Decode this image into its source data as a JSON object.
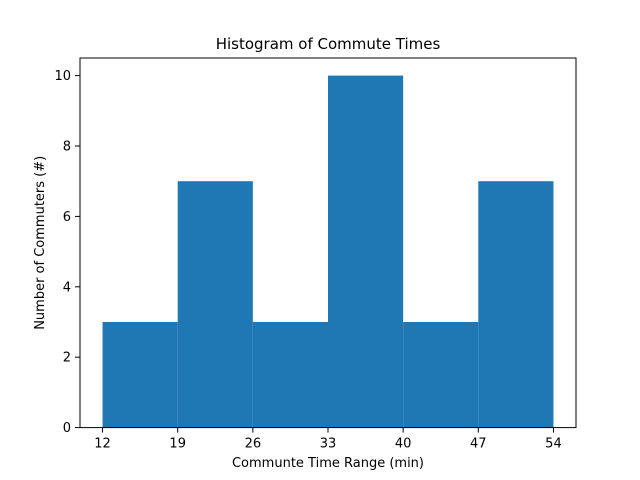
{
  "chart_data": {
    "type": "bar",
    "title": "Histogram of Commute Times",
    "xlabel": "Communte Time Range (min)",
    "ylabel": "Number of Commuters (#)",
    "bin_edges": [
      12,
      19,
      26,
      33,
      40,
      47,
      54
    ],
    "bins": [
      {
        "start": 12,
        "end": 19,
        "count": 3
      },
      {
        "start": 19,
        "end": 26,
        "count": 7
      },
      {
        "start": 26,
        "end": 33,
        "count": 3
      },
      {
        "start": 33,
        "end": 40,
        "count": 10
      },
      {
        "start": 40,
        "end": 47,
        "count": 3
      },
      {
        "start": 47,
        "end": 54,
        "count": 7
      }
    ],
    "xticks": [
      "12",
      "19",
      "26",
      "33",
      "40",
      "47",
      "54"
    ],
    "yticks": [
      "0",
      "2",
      "4",
      "6",
      "8",
      "10"
    ],
    "xlim": [
      9.9,
      56.1
    ],
    "ylim": [
      0,
      10.5
    ],
    "bar_color": "#1f77b4",
    "grid": false
  }
}
